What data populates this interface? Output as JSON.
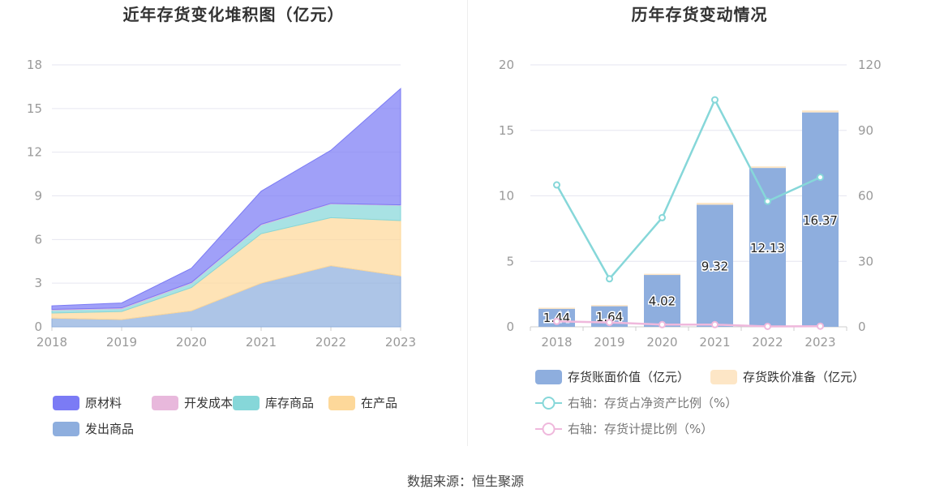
{
  "left_chart": {
    "title": "近年存货变化堆积图（亿元）",
    "colors": {
      "原材料": "#7b7bf5",
      "开发成本": "#e8b8dc",
      "库存商品": "#86d7d9",
      "在产品": "#fdd89a",
      "发出商品": "#8eaede"
    }
  },
  "right_chart": {
    "title": "历年存货变动情况",
    "colors": {
      "bar": "#8eaede",
      "reserve": "#fde6c6",
      "line_ratio_net": "#86d7d9",
      "line_provision": "#efb8dc"
    }
  },
  "chart_data": [
    {
      "type": "area",
      "stacked": true,
      "title": "近年存货变化堆积图（亿元）",
      "x": [
        "2018",
        "2019",
        "2020",
        "2021",
        "2022",
        "2023"
      ],
      "ylim": [
        0,
        18
      ],
      "yticks": [
        0,
        3,
        6,
        9,
        12,
        15,
        18
      ],
      "grid": true,
      "legend_position": "bottom-left",
      "series": [
        {
          "name": "发出商品",
          "values": [
            0.6,
            0.5,
            1.1,
            3.0,
            4.2,
            3.5
          ]
        },
        {
          "name": "在产品",
          "values": [
            0.35,
            0.55,
            1.6,
            3.4,
            3.3,
            3.8
          ]
        },
        {
          "name": "库存商品",
          "values": [
            0.2,
            0.2,
            0.3,
            0.6,
            0.95,
            1.05
          ]
        },
        {
          "name": "开发成本",
          "values": [
            0.05,
            0.05,
            0.05,
            0.05,
            0.03,
            0.03
          ]
        },
        {
          "name": "原材料",
          "values": [
            0.24,
            0.34,
            0.97,
            2.27,
            3.65,
            7.99
          ]
        }
      ],
      "legend": [
        "原材料",
        "开发成本",
        "库存商品",
        "在产品",
        "发出商品"
      ]
    },
    {
      "type": "bar",
      "title": "历年存货变动情况",
      "categories": [
        "2018",
        "2019",
        "2020",
        "2021",
        "2022",
        "2023"
      ],
      "ylim": [
        0,
        20
      ],
      "yticks": [
        0,
        5,
        10,
        15,
        20
      ],
      "y2lim": [
        0,
        120
      ],
      "y2ticks": [
        0,
        30,
        60,
        90,
        120
      ],
      "grid": true,
      "legend_position": "bottom-left",
      "series": [
        {
          "name": "存货账面价值（亿元）",
          "axis": "left",
          "values": [
            1.44,
            1.64,
            4.02,
            9.32,
            12.13,
            16.37
          ],
          "labels": [
            "1.44",
            "1.64",
            "4.02",
            "9.32",
            "12.13",
            "16.37"
          ]
        },
        {
          "name": "存货跌价准备（亿元）",
          "axis": "left",
          "values": [
            0.02,
            0.02,
            0.03,
            0.15,
            0.12,
            0.15
          ]
        },
        {
          "name": "右轴：存货占净资产比例（%）",
          "axis": "right",
          "type": "line",
          "values": [
            65,
            22,
            50,
            104,
            57.5,
            68.5
          ]
        },
        {
          "name": "右轴：存货计提比例（%）",
          "axis": "right",
          "type": "line",
          "values": [
            2.5,
            2,
            1,
            1,
            0.2,
            0.3
          ]
        }
      ]
    }
  ],
  "source": "数据来源：恒生聚源"
}
